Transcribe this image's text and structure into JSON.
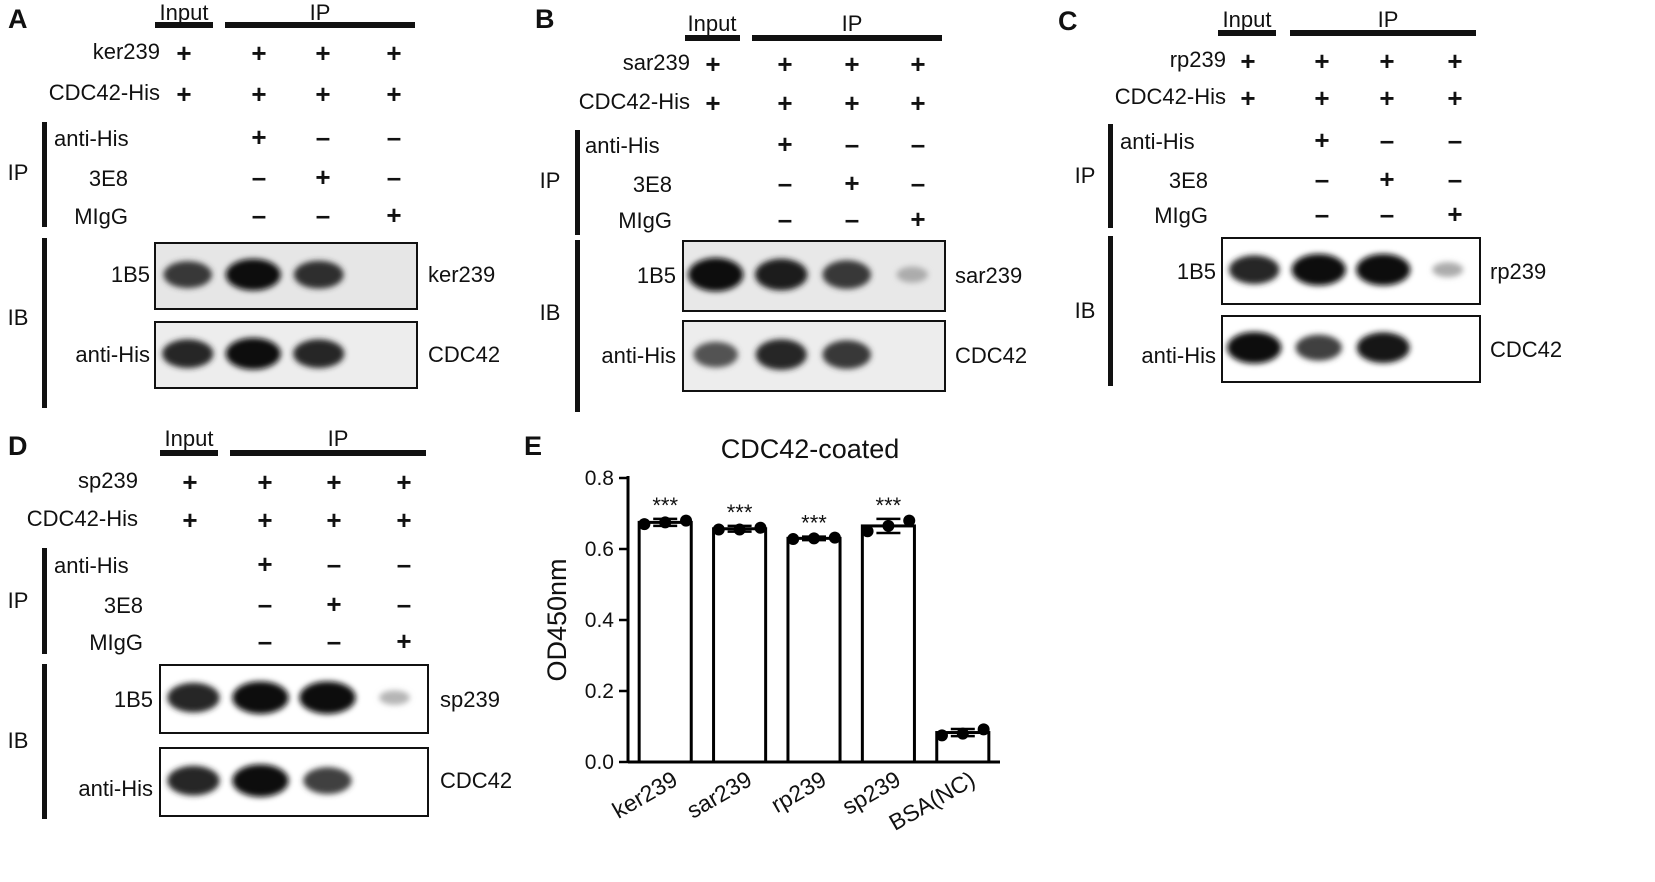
{
  "panels": [
    {
      "letter": "A",
      "header": {
        "input": "Input",
        "ip": "IP"
      },
      "protein": "ker239",
      "target": "CDC42-His",
      "protein_signs": [
        "+",
        "+",
        "+",
        "+"
      ],
      "target_signs": [
        "+",
        "+",
        "+",
        "+"
      ],
      "ip_label": "IP",
      "ip_rows": [
        {
          "label": "anti-His",
          "signs": [
            "+",
            "–",
            "–"
          ]
        },
        {
          "label": "3E8",
          "signs": [
            "–",
            "+",
            "–"
          ]
        },
        {
          "label": "MIgG",
          "signs": [
            "–",
            "–",
            "+"
          ]
        }
      ],
      "ib_label": "IB",
      "blots": [
        {
          "left": "1B5",
          "right": "ker239",
          "intensity": [
            0.75,
            1.0,
            0.8,
            0.0
          ]
        },
        {
          "left": "anti-His",
          "right": "CDC42",
          "intensity": [
            0.85,
            1.0,
            0.85,
            0.0
          ]
        }
      ]
    },
    {
      "letter": "B",
      "header": {
        "input": "Input",
        "ip": "IP"
      },
      "protein": "sar239",
      "target": "CDC42-His",
      "protein_signs": [
        "+",
        "+",
        "+",
        "+"
      ],
      "target_signs": [
        "+",
        "+",
        "+",
        "+"
      ],
      "ip_label": "IP",
      "ip_rows": [
        {
          "label": "anti-His",
          "signs": [
            "+",
            "–",
            "–"
          ]
        },
        {
          "label": "3E8",
          "signs": [
            "–",
            "+",
            "–"
          ]
        },
        {
          "label": "MIgG",
          "signs": [
            "–",
            "–",
            "+"
          ]
        }
      ],
      "ib_label": "IB",
      "blots": [
        {
          "left": "1B5",
          "right": "sar239",
          "intensity": [
            1.0,
            0.9,
            0.75,
            0.1
          ]
        },
        {
          "left": "anti-His",
          "right": "CDC42",
          "intensity": [
            0.6,
            0.85,
            0.75,
            0.0
          ]
        }
      ]
    },
    {
      "letter": "C",
      "header": {
        "input": "Input",
        "ip": "IP"
      },
      "protein": "rp239",
      "target": "CDC42-His",
      "protein_signs": [
        "+",
        "+",
        "+",
        "+"
      ],
      "target_signs": [
        "+",
        "+",
        "+",
        "+"
      ],
      "ip_label": "IP",
      "ip_rows": [
        {
          "label": "anti-His",
          "signs": [
            "+",
            "–",
            "–"
          ]
        },
        {
          "label": "3E8",
          "signs": [
            "–",
            "+",
            "–"
          ]
        },
        {
          "label": "MIgG",
          "signs": [
            "–",
            "–",
            "+"
          ]
        }
      ],
      "ib_label": "IB",
      "blots": [
        {
          "left": "1B5",
          "right": "rp239",
          "intensity": [
            0.85,
            1.0,
            1.0,
            0.1
          ]
        },
        {
          "left": "anti-His",
          "right": "CDC42",
          "intensity": [
            1.0,
            0.7,
            0.95,
            0.0
          ]
        }
      ]
    },
    {
      "letter": "D",
      "header": {
        "input": "Input",
        "ip": "IP"
      },
      "protein": "sp239",
      "target": "CDC42-His",
      "protein_signs": [
        "+",
        "+",
        "+",
        "+"
      ],
      "target_signs": [
        "+",
        "+",
        "+",
        "+"
      ],
      "ip_label": "IP",
      "ip_rows": [
        {
          "label": "anti-His",
          "signs": [
            "+",
            "–",
            "–"
          ]
        },
        {
          "label": "3E8",
          "signs": [
            "–",
            "+",
            "–"
          ]
        },
        {
          "label": "MIgG",
          "signs": [
            "–",
            "–",
            "+"
          ]
        }
      ],
      "ib_label": "IB",
      "blots": [
        {
          "left": "1B5",
          "right": "sp239",
          "intensity": [
            0.85,
            1.0,
            1.0,
            0.05
          ]
        },
        {
          "left": "anti-His",
          "right": "CDC42",
          "intensity": [
            0.85,
            1.0,
            0.7,
            0.0
          ]
        }
      ]
    }
  ],
  "chart_letter": "E",
  "chart_data": {
    "type": "bar",
    "title": "CDC42-coated",
    "xlabel": "",
    "ylabel": "OD450nm",
    "categories": [
      "ker239",
      "sar239",
      "rp239",
      "sp239",
      "BSA(NC)"
    ],
    "values": [
      0.675,
      0.657,
      0.63,
      0.665,
      0.083
    ],
    "errors": [
      0.01,
      0.008,
      0.005,
      0.02,
      0.01
    ],
    "points": [
      [
        0.67,
        0.675,
        0.68
      ],
      [
        0.655,
        0.655,
        0.66
      ],
      [
        0.628,
        0.63,
        0.632
      ],
      [
        0.65,
        0.665,
        0.68
      ],
      [
        0.075,
        0.08,
        0.092
      ]
    ],
    "significance": [
      "***",
      "***",
      "***",
      "***",
      ""
    ],
    "ylim": [
      0,
      0.8
    ],
    "yticks": [
      "0.0",
      "0.2",
      "0.4",
      "0.6",
      "0.8"
    ],
    "grid": false,
    "bar_color": "#ffffff",
    "edge_color": "#000000"
  }
}
